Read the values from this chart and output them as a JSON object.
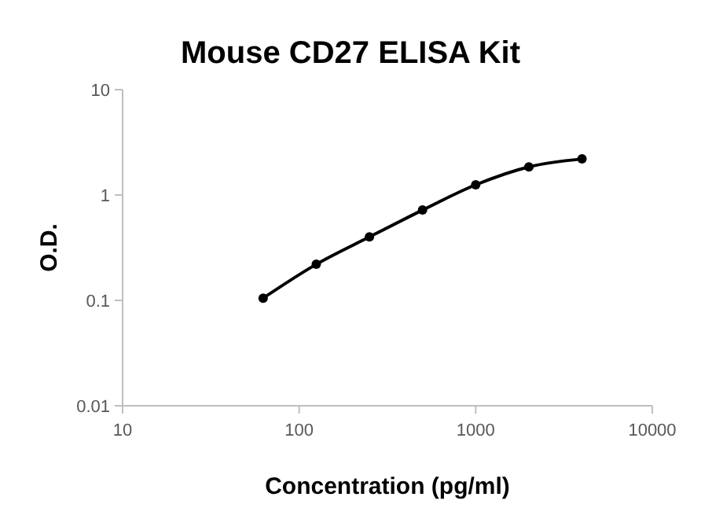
{
  "chart_data": {
    "type": "line",
    "title": "Mouse CD27 ELISA Kit",
    "xlabel": "Concentration (pg/ml)",
    "ylabel": "O.D.",
    "x": [
      62.5,
      125,
      250,
      500,
      1000,
      2000,
      4000
    ],
    "series": [
      {
        "color": "#000000",
        "values": [
          0.105,
          0.22,
          0.4,
          0.72,
          1.25,
          1.85,
          2.2
        ]
      }
    ],
    "log": "xy",
    "xlim": [
      10,
      10000
    ],
    "xticks": [
      10,
      100,
      1000,
      10000
    ],
    "ylim": [
      0.01,
      10
    ],
    "yticks": [
      0.01,
      0.1,
      1,
      10
    ],
    "marker": "circle",
    "line_style": "solid"
  }
}
